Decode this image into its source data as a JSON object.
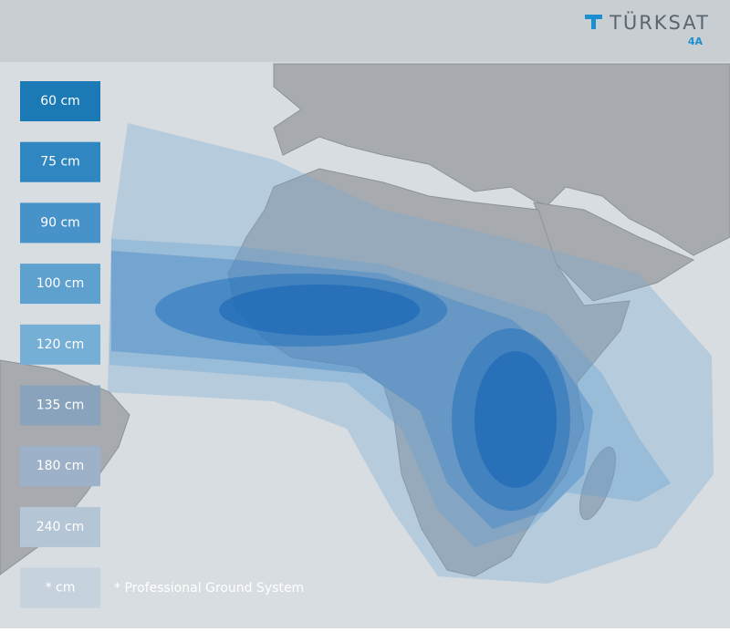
{
  "header": {
    "brand": "TÜRKSAT",
    "model": "4A"
  },
  "legend": {
    "items": [
      {
        "label": "60 cm",
        "color": "#1b79b5"
      },
      {
        "label": "75 cm",
        "color": "#2f86c0"
      },
      {
        "label": "90 cm",
        "color": "#4692c9"
      },
      {
        "label": "100 cm",
        "color": "#5ea1cf"
      },
      {
        "label": "120 cm",
        "color": "#76afd6"
      },
      {
        "label": "135 cm",
        "color": "#8aa3bc"
      },
      {
        "label": "180 cm",
        "color": "#9db2c8"
      },
      {
        "label": "240 cm",
        "color": "#b4c5d6"
      },
      {
        "label": "* cm",
        "color": "#c6d2dd"
      }
    ]
  },
  "footnote": "* Professional Ground System"
}
